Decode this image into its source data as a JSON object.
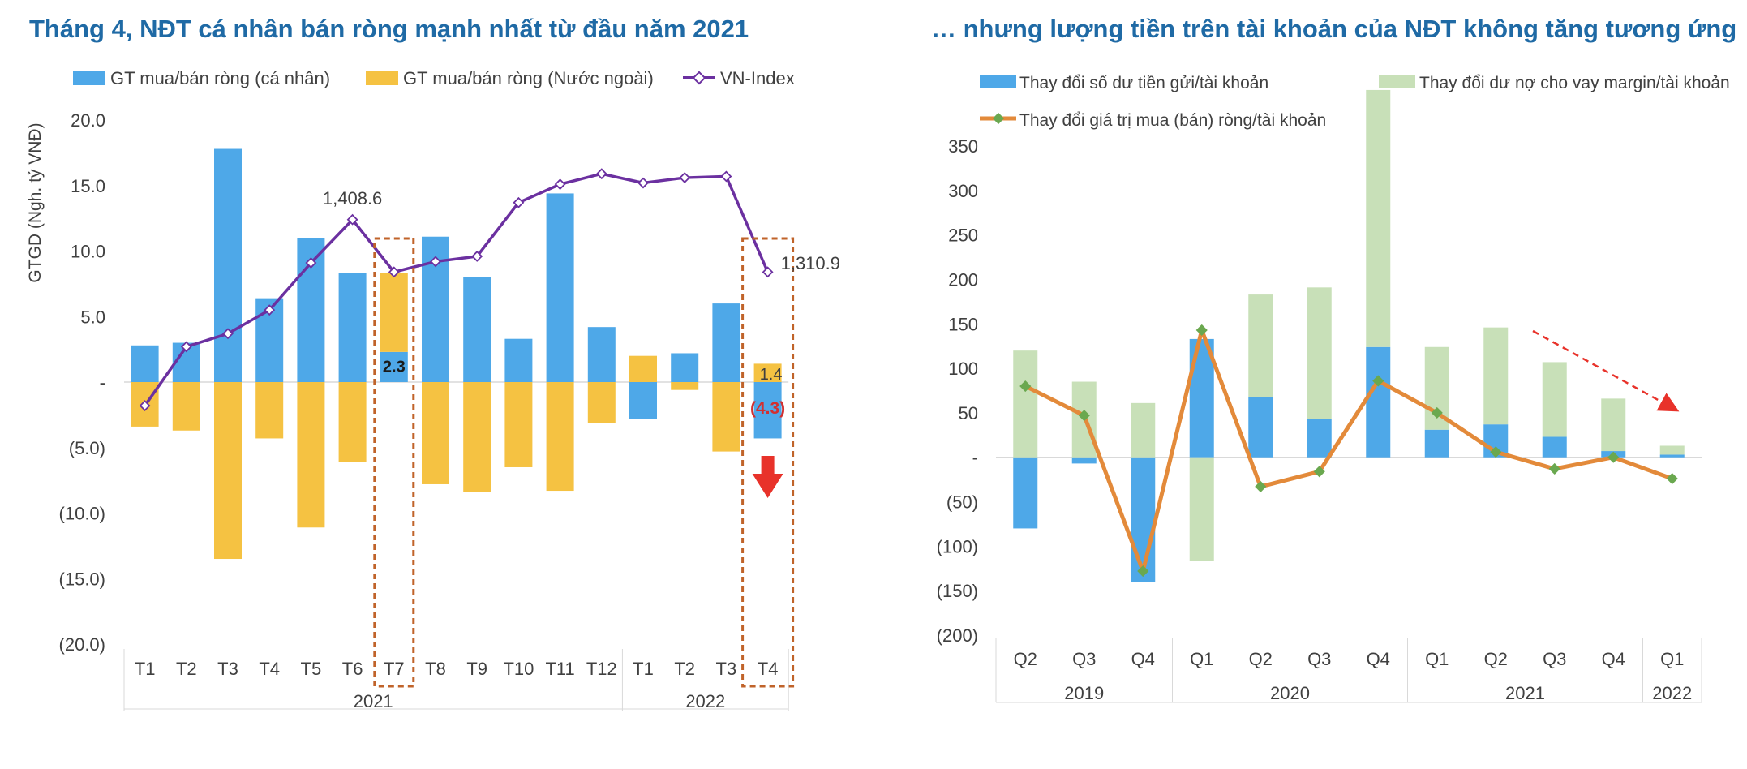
{
  "colors": {
    "title": "#1f6aa5",
    "text": "#404040",
    "axis": "#d9d9d9",
    "blue_bar": "#4ea8e8",
    "yellow_bar": "#f5c242",
    "vnindex_line": "#6b30a0",
    "green_bar": "#c8e0b8",
    "orange_line": "#e38a3a",
    "green_marker": "#6aa84f",
    "highlight_box": "#c0632a",
    "arrow_red": "#e8322a"
  },
  "chart_data": [
    {
      "type": "bar",
      "title": "Tháng 4, NĐT cá nhân bán ròng mạnh nhất từ đầu năm 2021",
      "ylabel": "GTGD (Ngh. tỷ VNĐ)",
      "ylim": [
        -20,
        20
      ],
      "ytick_labels": [
        "20.0",
        "15.0",
        "10.0",
        "5.0",
        "-",
        "(5.0)",
        "(10.0)",
        "(15.0)",
        "(20.0)"
      ],
      "ytick_values": [
        20,
        15,
        10,
        5,
        0,
        -5,
        -10,
        -15,
        -20
      ],
      "categories": [
        "T1",
        "T2",
        "T3",
        "T4",
        "T5",
        "T6",
        "T7",
        "T8",
        "T9",
        "T10",
        "T11",
        "T12",
        "T1",
        "T2",
        "T3",
        "T4"
      ],
      "groups": [
        {
          "label": "2021",
          "start": 0,
          "end": 11
        },
        {
          "label": "2022",
          "start": 12,
          "end": 15
        }
      ],
      "legend": [
        "GT mua/bán ròng (cá nhân)",
        "GT mua/bán ròng (Nước ngoài)",
        "VN-Index"
      ],
      "series": [
        {
          "name": "GT mua/bán ròng (cá nhân)",
          "values": [
            2.8,
            3.0,
            17.8,
            6.4,
            11.0,
            8.3,
            2.3,
            11.1,
            8.0,
            3.3,
            14.4,
            4.2,
            -2.8,
            2.2,
            6.0,
            -4.3
          ]
        },
        {
          "name": "GT mua/bán ròng (Nước ngoài)",
          "values": [
            -3.4,
            -3.7,
            -13.5,
            -4.3,
            -11.1,
            -6.1,
            6.0,
            -7.8,
            -8.4,
            -6.5,
            -8.3,
            -3.1,
            2.0,
            -0.6,
            -5.3,
            1.4
          ]
        },
        {
          "name": "VN-Index",
          "values": [
            -1.8,
            2.7,
            3.7,
            5.5,
            9.1,
            12.4,
            8.4,
            9.2,
            9.6,
            13.7,
            15.1,
            15.9,
            15.2,
            15.6,
            15.7,
            8.4
          ]
        }
      ],
      "annotations": [
        {
          "text": "1,408.6",
          "index": 5
        },
        {
          "text": "1,310.9",
          "index": 15
        },
        {
          "text": "2.3",
          "index": 6
        },
        {
          "text": "1.4",
          "index": 15
        },
        {
          "text": "(4.3)",
          "index": 15
        }
      ],
      "highlight_indices": [
        6,
        15
      ]
    },
    {
      "type": "bar",
      "title": "… nhưng lượng tiền trên tài khoản của NĐT không tăng tương ứng",
      "ylim": [
        -200,
        350
      ],
      "ytick_labels": [
        "350",
        "300",
        "250",
        "200",
        "150",
        "100",
        "50",
        "-",
        "(50)",
        "(100)",
        "(150)",
        "(200)"
      ],
      "ytick_values": [
        350,
        300,
        250,
        200,
        150,
        100,
        50,
        0,
        -50,
        -100,
        -150,
        -200
      ],
      "categories": [
        "Q2",
        "Q3",
        "Q4",
        "Q1",
        "Q2",
        "Q3",
        "Q4",
        "Q1",
        "Q2",
        "Q3",
        "Q4",
        "Q1"
      ],
      "groups": [
        {
          "label": "2019",
          "start": 0,
          "end": 2
        },
        {
          "label": "2020",
          "start": 3,
          "end": 6
        },
        {
          "label": "2021",
          "start": 7,
          "end": 10
        },
        {
          "label": "2022",
          "start": 11,
          "end": 11
        }
      ],
      "legend": [
        "Thay đổi số dư tiền gửi/tài khoản",
        "Thay đổi dư nợ cho vay margin/tài khoản",
        "Thay đổi giá trị mua (bán) ròng/tài khoản"
      ],
      "series": [
        {
          "name": "Thay đổi số dư tiền gửi/tài khoản",
          "values": [
            -80,
            -7,
            -140,
            133,
            68,
            43,
            124,
            31,
            37,
            23,
            7,
            3
          ]
        },
        {
          "name": "Thay đổi dư nợ cho vay margin/tài khoản",
          "values": [
            120,
            85,
            61,
            -117,
            115,
            148,
            289,
            93,
            109,
            84,
            59,
            10
          ]
        },
        {
          "name": "Thay đổi giá trị mua (bán) ròng/tài khoản",
          "values": [
            80,
            47,
            -128,
            143,
            -33,
            -16,
            86,
            50,
            6,
            -13,
            0,
            -24
          ]
        }
      ]
    }
  ]
}
